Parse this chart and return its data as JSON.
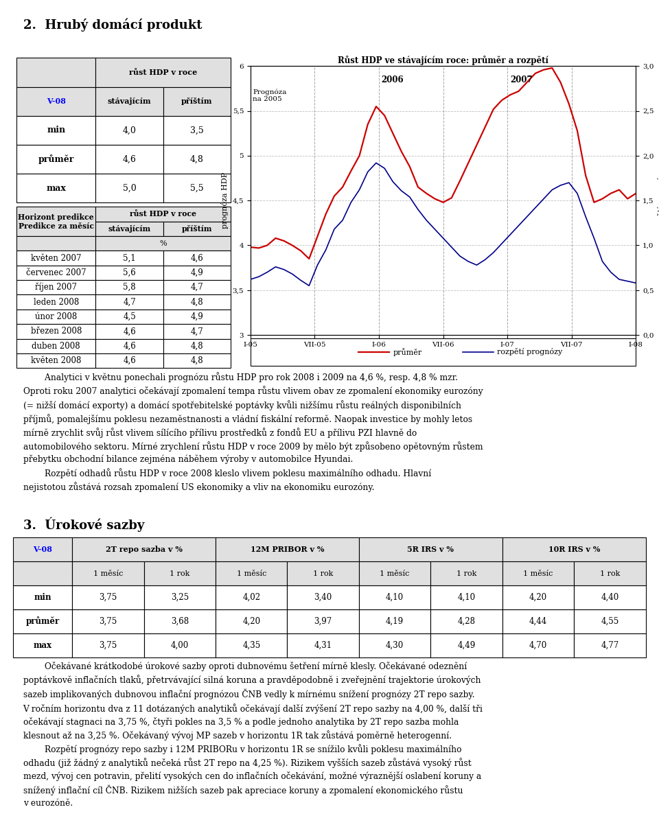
{
  "title_section": "2.  Hrubý domácí produkt",
  "chart_title": "Růst HDP ve stávajícím roce: průměr a rozpětí",
  "chart_ylabel_left": "prognóza HDP",
  "chart_ylabel_right": "rozpětí prognózy",
  "chart_xticks": [
    "I-05",
    "VII-05",
    "I-06",
    "VII-06",
    "I-07",
    "VII-07",
    "I-08"
  ],
  "legend_mean": "průměr",
  "legend_spread": "rozpětí prognózy",
  "prognoza_label": "Prognóza\nna 2005",
  "year_labels": [
    "2006",
    "2007"
  ],
  "mean_color": "#CC0000",
  "spread_color": "#00008B",
  "mean_line_y": [
    3.98,
    3.97,
    4.0,
    4.08,
    4.05,
    4.0,
    3.94,
    3.85,
    4.1,
    4.35,
    4.55,
    4.65,
    4.83,
    5.0,
    5.35,
    5.55,
    5.45,
    5.25,
    5.05,
    4.88,
    4.65,
    4.58,
    4.52,
    4.48,
    4.53,
    4.72,
    4.92,
    5.12,
    5.32,
    5.52,
    5.62,
    5.68,
    5.72,
    5.82,
    5.92,
    5.96,
    5.98,
    5.82,
    5.58,
    5.28,
    4.78,
    4.48,
    4.52,
    4.58,
    4.62,
    4.52,
    4.58
  ],
  "spread_line_y": [
    0.62,
    0.65,
    0.7,
    0.76,
    0.73,
    0.68,
    0.61,
    0.55,
    0.78,
    0.95,
    1.18,
    1.28,
    1.48,
    1.62,
    1.82,
    1.92,
    1.86,
    1.71,
    1.61,
    1.54,
    1.4,
    1.28,
    1.18,
    1.08,
    0.98,
    0.88,
    0.82,
    0.78,
    0.84,
    0.92,
    1.02,
    1.12,
    1.22,
    1.32,
    1.42,
    1.52,
    1.62,
    1.67,
    1.7,
    1.58,
    1.32,
    1.08,
    0.82,
    0.7,
    0.62,
    0.6,
    0.58
  ],
  "table1_rows": [
    [
      "min",
      "4,0",
      "3,5"
    ],
    [
      "průměr",
      "4,6",
      "4,8"
    ],
    [
      "max",
      "5,0",
      "5,5"
    ]
  ],
  "table2_rows": [
    [
      "květen 2007",
      "5,1",
      "4,6"
    ],
    [
      "červenec 2007",
      "5,6",
      "4,9"
    ],
    [
      "říjen 2007",
      "5,8",
      "4,7"
    ],
    [
      "leden 2008",
      "4,7",
      "4,8"
    ],
    [
      "únor 2008",
      "4,5",
      "4,9"
    ],
    [
      "březen 2008",
      "4,6",
      "4,7"
    ],
    [
      "duben 2008",
      "4,6",
      "4,8"
    ],
    [
      "květen 2008",
      "4,6",
      "4,8"
    ]
  ],
  "section3_title": "3.  Úrokové sazby",
  "table3_rows": [
    [
      "min",
      "3,75",
      "3,25",
      "4,02",
      "3,40",
      "4,10",
      "4,10",
      "4,20",
      "4,40"
    ],
    [
      "průměr",
      "3,75",
      "3,68",
      "4,20",
      "3,97",
      "4,19",
      "4,28",
      "4,44",
      "4,55"
    ],
    [
      "max",
      "3,75",
      "4,00",
      "4,35",
      "4,31",
      "4,30",
      "4,49",
      "4,70",
      "4,77"
    ]
  ],
  "paragraph1_lines": [
    "        Analytici v květnu ponechali prognózu růstu HDP pro rok 2008 i 2009 na 4,6 %, resp. 4,8 % mzr.",
    "Oproti roku 2007 analytici očekávají zpomalení tempa růstu vlivem obav ze zpomalení ekonomiky eurozóny",
    "(= nižší domácí exporty) a domácí spotřebitelské poptávky kvůli nižšímu růstu reálných disponibilních",
    "příjmů, pomalejšímu poklesu nezaměstnanosti a vládní fiskální reformě. Naopak investice by mohly letos",
    "mírně zrychlit svůj růst vlivem sílícího přílivu prostředků z fondů EU a přílivu PZI hlavně do",
    "automobilového sektoru. Mírné zrychlení růstu HDP v roce 2009 by mělo být způsobeno opětovným růstem",
    "přebytku obchodní bilance zejména náběhem výroby v automobilce Hyundai.",
    "        Rozpětí odhadů růstu HDP v roce 2008 kleslo vlivem poklesu maximálního odhadu. Hlavní",
    "nejistotou zůstává rozsah zpomalení US ekonomiky a vliv na ekonomiku eurozóny."
  ],
  "paragraph2_lines": [
    "        Očekávané krátkodobé úrokové sazby oproti dubnovému šetření mírně klesly. Očekávané odeznění",
    "poptávkově inflačních tlaků, přetrvávající silná koruna a pravděpodobně i zveřejnění trajektorie úrokových",
    "sazeb implikovaných dubnovou inflační prognózou ČNB vedly k mírnému snížení prognózy 2T repo sazby.",
    "V ročním horizontu dva z 11 dotázaných analytiků očekávají další zvýšení 2T repo sazby na 4,00 %, další tři",
    "očekávají stagnaci na 3,75 %, čtyři pokles na 3,5 % a podle jednoho analytika by 2T repo sazba mohla",
    "klesnout až na 3,25 %. Očekávaný vývoj MP sazeb v horizontu 1R tak zůstává poměrně heterogenní.",
    "        Rozpětí prognózy repo sazby i 12M PRIBORu v horizontu 1R se snížilo kvůli poklesu maximálního",
    "odhadu (již žádný z analytiků nečeká růst 2T repo na 4,25 %). Rizikem vyšších sazeb zůstává vysoký růst",
    "mezd, vývoj cen potravin, přelití vysokých cen do inflačních očekávání, možné výraznější oslabení koruny a",
    "snížený inflační cíl ČNB. Rizikem nižších sazeb pak apreciace koruny a zpomalení ekonomického růstu",
    "v eurozóně."
  ]
}
